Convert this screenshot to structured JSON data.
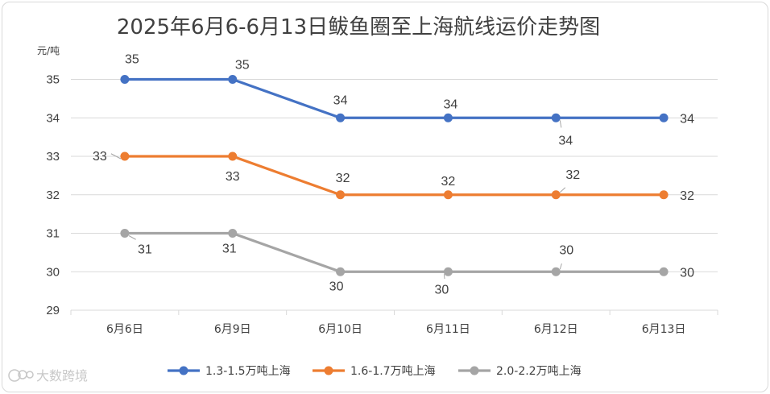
{
  "chart_data": {
    "type": "line",
    "title": "2025年6月6-6月13日鲅鱼圈至上海航线运价走势图",
    "ylabel": "元/吨",
    "xlabel": "",
    "ylim": [
      29,
      35
    ],
    "yticks": [
      29,
      30,
      31,
      32,
      33,
      34,
      35
    ],
    "categories": [
      "6月6日",
      "6月9日",
      "6月10日",
      "6月11日",
      "6月12日",
      "6月13日"
    ],
    "grid": true,
    "legend_position": "bottom",
    "series": [
      {
        "name": "1.3-1.5万吨上海",
        "color": "#4472c4",
        "values": [
          35,
          35,
          34,
          34,
          34,
          34
        ]
      },
      {
        "name": "1.6-1.7万吨上海",
        "color": "#ed7d31",
        "values": [
          33,
          33,
          32,
          32,
          32,
          32
        ]
      },
      {
        "name": "2.0-2.2万吨上海",
        "color": "#a5a5a5",
        "values": [
          31,
          31,
          30,
          30,
          30,
          30
        ]
      }
    ]
  },
  "watermark": {
    "text": "大数跨境",
    "icon": "brand-logo-icon"
  },
  "colors": {
    "grid": "#d9d9d9",
    "text": "#404040",
    "leader": "#a6a6a6"
  }
}
